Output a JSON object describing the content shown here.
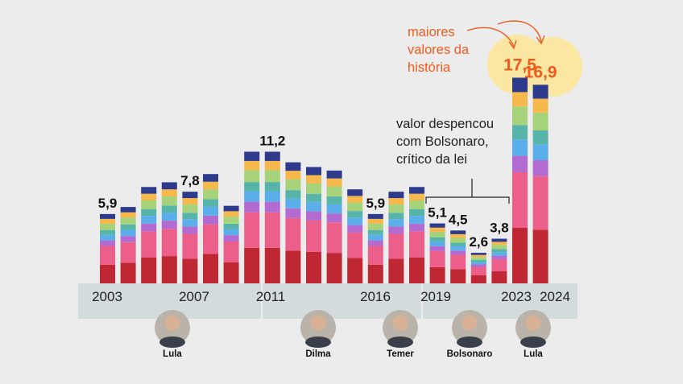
{
  "chart_data": {
    "type": "bar",
    "stacked": true,
    "categories": [
      "2003",
      "2004",
      "2005",
      "2006",
      "2007",
      "2008",
      "2009",
      "2010",
      "2011",
      "2012",
      "2013",
      "2014",
      "2015",
      "2016",
      "2017",
      "2018",
      "2019",
      "2020",
      "2021",
      "2022",
      "2023",
      "2024"
    ],
    "visible_year_labels": [
      "2003",
      "2007",
      "2011",
      "2016",
      "2019",
      "2023",
      "2024"
    ],
    "totals": [
      5.9,
      6.5,
      8.2,
      8.6,
      7.8,
      9.3,
      6.6,
      11.2,
      11.2,
      10.3,
      9.9,
      9.6,
      8.0,
      5.9,
      7.8,
      8.2,
      5.1,
      4.5,
      2.6,
      3.8,
      17.5,
      16.9
    ],
    "data_labels": [
      {
        "index": 0,
        "text": "5,9"
      },
      {
        "index": 4,
        "text": "7,8"
      },
      {
        "index": 8,
        "text": "11,2"
      },
      {
        "index": 13,
        "text": "5,9"
      },
      {
        "index": 16,
        "text": "5,1"
      },
      {
        "index": 17,
        "text": "4,5"
      },
      {
        "index": 18,
        "text": "2,6"
      },
      {
        "index": 19,
        "text": "3,8"
      },
      {
        "index": 20,
        "text": "17,5",
        "highlight": true
      },
      {
        "index": 21,
        "text": "16,9",
        "highlight": true
      }
    ],
    "segment_colors": [
      "#bf2732",
      "#ec5f8a",
      "#b36bd2",
      "#5aaeea",
      "#56b4a8",
      "#a6d37a",
      "#f7b84b",
      "#2e3a8c"
    ],
    "segment_shares": [
      0.27,
      0.27,
      0.08,
      0.08,
      0.07,
      0.09,
      0.07,
      0.07
    ],
    "ylim": [
      0,
      18
    ],
    "annotations": {
      "record_lines": [
        "maiores",
        "valores da",
        "história"
      ],
      "bolsonaro_lines": [
        "valor despencou",
        "com Bolsonaro,",
        "crítico da lei"
      ]
    },
    "presidents": [
      {
        "name": "Lula",
        "span": [
          2003,
          2010
        ]
      },
      {
        "name": "Dilma",
        "span": [
          2011,
          2016
        ]
      },
      {
        "name": "Temer",
        "span": [
          2016,
          2018
        ]
      },
      {
        "name": "Bolsonaro",
        "span": [
          2019,
          2022
        ]
      },
      {
        "name": "Lula",
        "span": [
          2023,
          2024
        ]
      }
    ],
    "colors": {
      "background": "#ececec",
      "axis_band": "#d3dbdc",
      "highlight_text": "#ef5a1f",
      "highlight_circle": "#fbe7a1"
    }
  }
}
